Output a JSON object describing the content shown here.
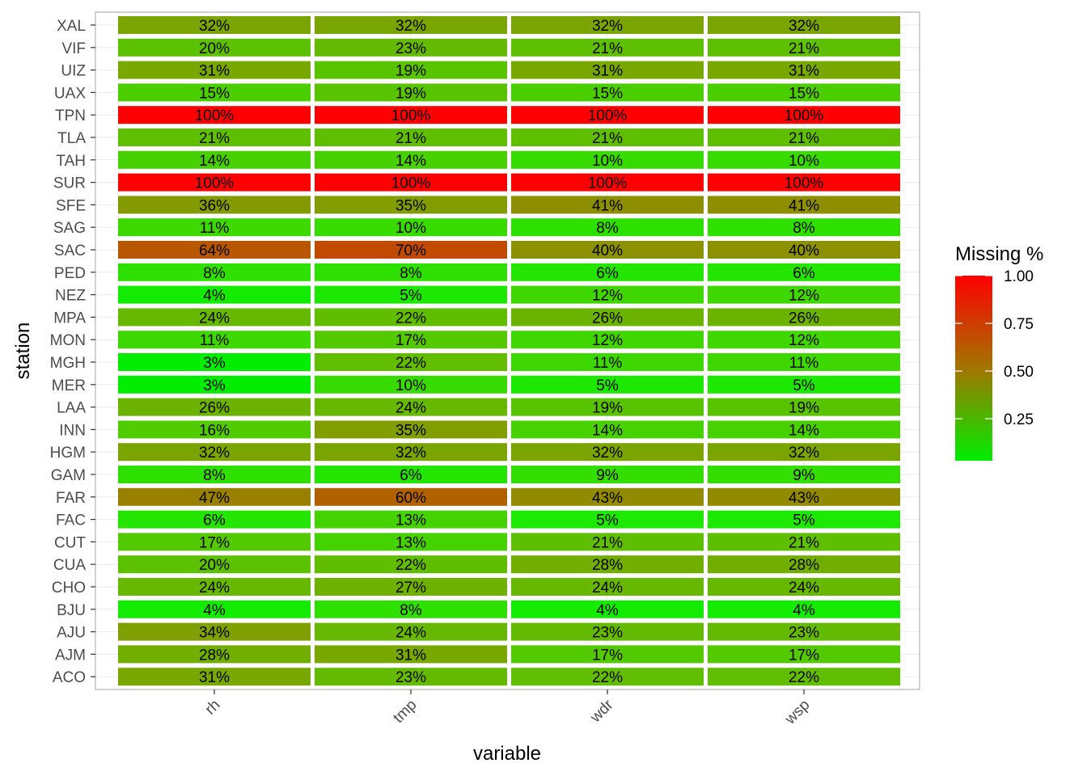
{
  "chart_data": {
    "type": "heatmap",
    "xlabel": "variable",
    "ylabel": "station",
    "x_categories": [
      "rh",
      "tmp",
      "wdr",
      "wsp"
    ],
    "y_categories": [
      "XAL",
      "VIF",
      "UIZ",
      "UAX",
      "TPN",
      "TLA",
      "TAH",
      "SUR",
      "SFE",
      "SAG",
      "SAC",
      "PED",
      "NEZ",
      "MPA",
      "MON",
      "MGH",
      "MER",
      "LAA",
      "INN",
      "HGM",
      "GAM",
      "FAR",
      "FAC",
      "CUT",
      "CUA",
      "CHO",
      "BJU",
      "AJU",
      "AJM",
      "ACO"
    ],
    "values": [
      [
        32,
        32,
        32,
        32
      ],
      [
        20,
        23,
        21,
        21
      ],
      [
        31,
        19,
        31,
        31
      ],
      [
        15,
        19,
        15,
        15
      ],
      [
        100,
        100,
        100,
        100
      ],
      [
        21,
        21,
        21,
        21
      ],
      [
        14,
        14,
        10,
        10
      ],
      [
        100,
        100,
        100,
        100
      ],
      [
        36,
        35,
        41,
        41
      ],
      [
        11,
        10,
        8,
        8
      ],
      [
        64,
        70,
        40,
        40
      ],
      [
        8,
        8,
        6,
        6
      ],
      [
        4,
        5,
        12,
        12
      ],
      [
        24,
        22,
        26,
        26
      ],
      [
        11,
        17,
        12,
        12
      ],
      [
        3,
        22,
        11,
        11
      ],
      [
        3,
        10,
        5,
        5
      ],
      [
        26,
        24,
        19,
        19
      ],
      [
        16,
        35,
        14,
        14
      ],
      [
        32,
        32,
        32,
        32
      ],
      [
        8,
        6,
        9,
        9
      ],
      [
        47,
        60,
        43,
        43
      ],
      [
        6,
        13,
        5,
        5
      ],
      [
        17,
        13,
        21,
        21
      ],
      [
        20,
        22,
        28,
        28
      ],
      [
        24,
        27,
        24,
        24
      ],
      [
        4,
        8,
        4,
        4
      ],
      [
        34,
        24,
        23,
        23
      ],
      [
        28,
        31,
        17,
        17
      ],
      [
        31,
        23,
        22,
        22
      ]
    ],
    "value_format": "percent",
    "legend": {
      "title": "Missing %",
      "position": "right",
      "ticks": [
        "1.00",
        "0.75",
        "0.50",
        "0.25"
      ],
      "range": [
        0.03,
        1.0
      ],
      "color_low": "#00ff00",
      "color_high": "#ff0000"
    },
    "grid": true
  }
}
